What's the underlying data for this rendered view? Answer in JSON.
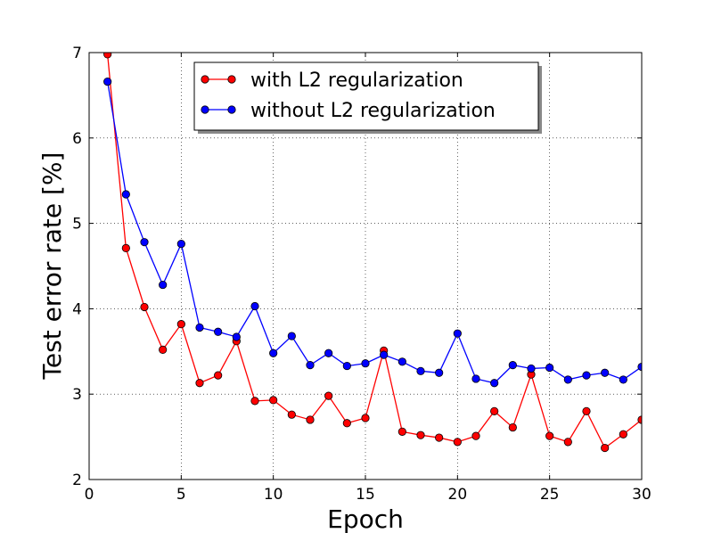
{
  "chart_data": {
    "type": "line",
    "xlabel": "Epoch",
    "ylabel": "Test error rate [%]",
    "xlim": [
      0,
      30
    ],
    "ylim": [
      2,
      7
    ],
    "xticks": [
      "0",
      "5",
      "10",
      "15",
      "20",
      "25",
      "30"
    ],
    "yticks": [
      "2",
      "3",
      "4",
      "5",
      "6",
      "7"
    ],
    "grid": true,
    "legend_position": "top-center",
    "x": [
      1,
      2,
      3,
      4,
      5,
      6,
      7,
      8,
      9,
      10,
      11,
      12,
      13,
      14,
      15,
      16,
      17,
      18,
      19,
      20,
      21,
      22,
      23,
      24,
      25,
      26,
      27,
      28,
      29,
      30
    ],
    "series": [
      {
        "name": "with L2 regularization",
        "color": "#ff0000",
        "values": [
          6.98,
          4.71,
          4.02,
          3.52,
          3.82,
          3.13,
          3.22,
          3.62,
          2.92,
          2.93,
          2.76,
          2.7,
          2.98,
          2.66,
          2.72,
          3.51,
          2.56,
          2.52,
          2.49,
          2.44,
          2.51,
          2.8,
          2.61,
          3.23,
          2.51,
          2.44,
          2.8,
          2.37,
          2.53,
          2.7
        ]
      },
      {
        "name": "without L2 regularization",
        "color": "#0000ff",
        "values": [
          6.66,
          5.34,
          4.78,
          4.28,
          4.76,
          3.78,
          3.73,
          3.67,
          4.03,
          3.48,
          3.68,
          3.34,
          3.48,
          3.33,
          3.36,
          3.46,
          3.38,
          3.27,
          3.25,
          3.71,
          3.18,
          3.13,
          3.34,
          3.3,
          3.31,
          3.17,
          3.22,
          3.25,
          3.17,
          3.32
        ]
      }
    ]
  }
}
